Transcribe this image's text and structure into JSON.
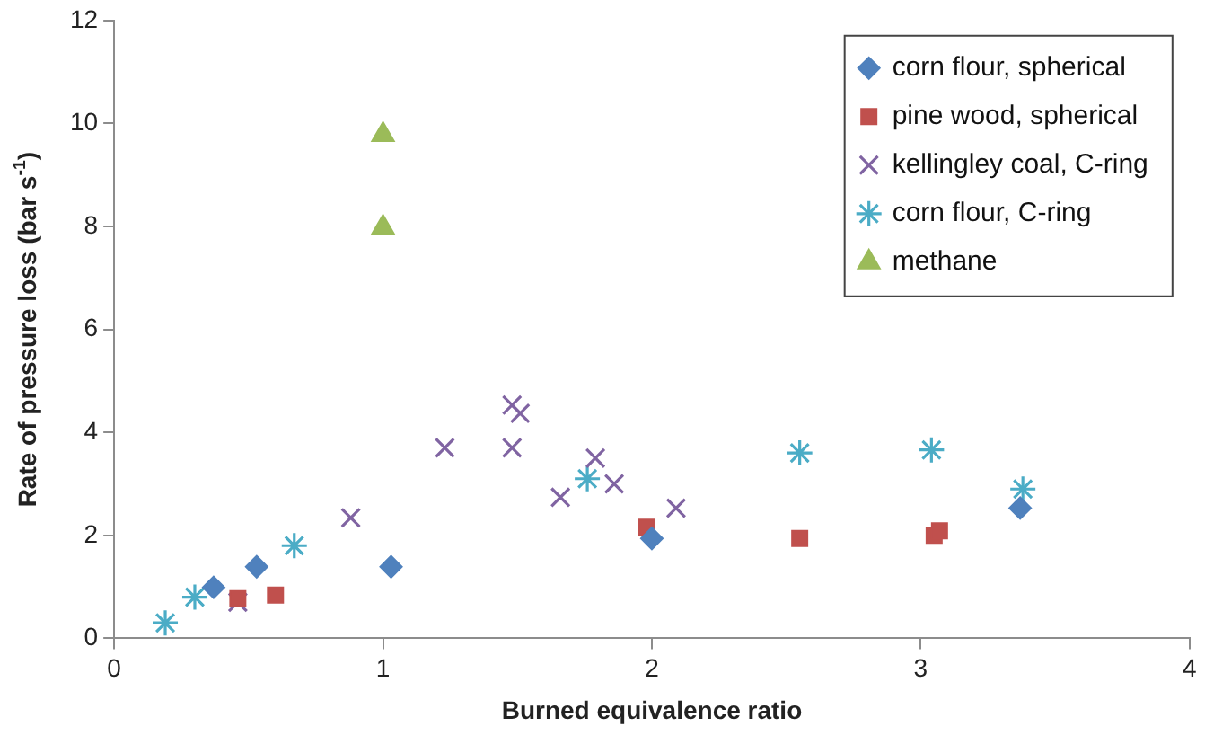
{
  "chart_data": {
    "type": "scatter",
    "xlabel": "Burned equivalence ratio",
    "ylabel": "Rate of pressure loss (bar s$^{-1}$)",
    "xlim": [
      0,
      4
    ],
    "xticks": [
      0,
      1,
      2,
      3,
      4
    ],
    "ylim": [
      0,
      12
    ],
    "yticks": [
      0,
      2,
      4,
      6,
      8,
      10,
      12
    ],
    "grid": false,
    "legend": "top right",
    "series": [
      {
        "name": "corn flour, spherical",
        "color": "#4f81bd",
        "marker": "diamond",
        "x": [
          0.37,
          0.53,
          1.03,
          2.0,
          3.37
        ],
        "values": [
          0.99,
          1.39,
          1.39,
          1.94,
          2.53
        ]
      },
      {
        "name": "pine wood, spherical",
        "color": "#c0504d",
        "marker": "square",
        "x": [
          0.46,
          0.6,
          1.98,
          2.55,
          3.05,
          3.07
        ],
        "values": [
          0.77,
          0.84,
          2.16,
          1.94,
          2.0,
          2.09
        ]
      },
      {
        "name": "kellingley coal, C-ring",
        "color": "#8064a2",
        "marker": "cross",
        "x": [
          0.46,
          0.88,
          1.23,
          1.48,
          1.51,
          1.48,
          1.66,
          1.79,
          1.86,
          2.09
        ],
        "values": [
          0.7,
          2.34,
          3.7,
          4.53,
          4.37,
          3.7,
          2.74,
          3.5,
          3.0,
          2.53
        ]
      },
      {
        "name": "corn flour, C-ring",
        "color": "#4bacc6",
        "x": [
          0.19,
          0.3,
          0.67,
          1.76,
          2.55,
          3.04,
          3.38
        ],
        "values": [
          0.3,
          0.8,
          1.8,
          3.1,
          3.6,
          3.66,
          2.9
        ]
      },
      {
        "name": "methane",
        "color": "#9bbb59",
        "marker": "triangle",
        "x": [
          1.0,
          1.0
        ],
        "values": [
          9.78,
          7.98
        ]
      }
    ]
  }
}
